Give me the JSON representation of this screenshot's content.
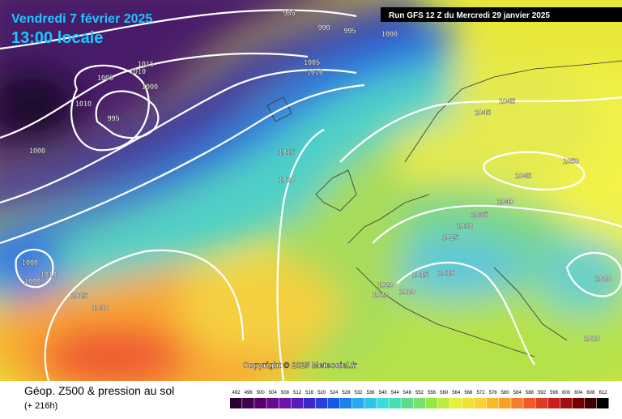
{
  "header": {
    "date": "Vendredi 7 février 2025",
    "time": "13:00 locale",
    "run": "Run GFS 12 Z du Mercredi 29 janvier 2025"
  },
  "copyright": "Copyright © 2025 Meteociel.fr",
  "footer": {
    "title": "Géop. Z500 & pression au sol",
    "lead": "(+ 216h)"
  },
  "isobar_labels": [
    985,
    990,
    995,
    1000,
    1005,
    1010,
    1015,
    1010,
    1005,
    1000,
    1010,
    995,
    1000,
    1045,
    1045,
    1015,
    1020,
    1045,
    1050,
    1040,
    1035,
    1030,
    1025,
    1015,
    1015,
    1020,
    1020,
    1020,
    1000,
    1010,
    1000,
    1025,
    1030,
    1020,
    1020
  ],
  "scale": [
    492,
    496,
    500,
    504,
    508,
    512,
    516,
    520,
    524,
    528,
    532,
    536,
    540,
    544,
    548,
    552,
    556,
    560,
    564,
    568,
    572,
    576,
    580,
    584,
    588,
    592,
    596,
    600,
    604,
    608,
    612
  ]
}
